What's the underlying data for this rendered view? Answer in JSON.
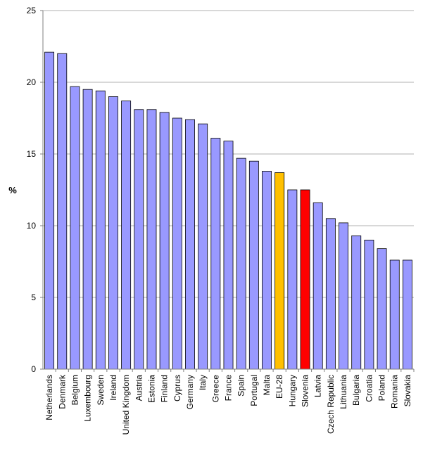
{
  "chart_data": {
    "type": "bar",
    "title": "",
    "xlabel": "",
    "ylabel": "%",
    "ylim": [
      0,
      25
    ],
    "yticks": [
      "0",
      "5",
      "10",
      "15",
      "20",
      "25"
    ],
    "grid": true,
    "legend": "none",
    "categories": [
      "Netherlands",
      "Denmark",
      "Belgium",
      "Luxembourg",
      "Sweden",
      "Ireland",
      "United Kingdom",
      "Austria",
      "Estonia",
      "Finland",
      "Cyprus",
      "Germany",
      "Italy",
      "Greece",
      "France",
      "Spain",
      "Portugal",
      "Malta",
      "EU-28",
      "Hungary",
      "Slovenia",
      "Latvia",
      "Czech Republic",
      "Lithuania",
      "Bulgaria",
      "Croatia",
      "Poland",
      "Romania",
      "Slovakia"
    ],
    "values": [
      22.1,
      22.0,
      19.7,
      19.5,
      19.4,
      19.0,
      18.7,
      18.1,
      18.1,
      17.9,
      17.5,
      17.4,
      17.1,
      16.1,
      15.9,
      14.7,
      14.5,
      13.8,
      13.7,
      12.5,
      12.5,
      11.6,
      10.5,
      10.2,
      9.3,
      9.0,
      8.4,
      7.6,
      7.6
    ],
    "colors": {
      "default": "#9999ff",
      "highlight": {
        "EU-28": "#ffc000",
        "Slovenia": "#ff0000"
      },
      "gridline": "#b0b0b0",
      "axis": "#808080"
    }
  }
}
